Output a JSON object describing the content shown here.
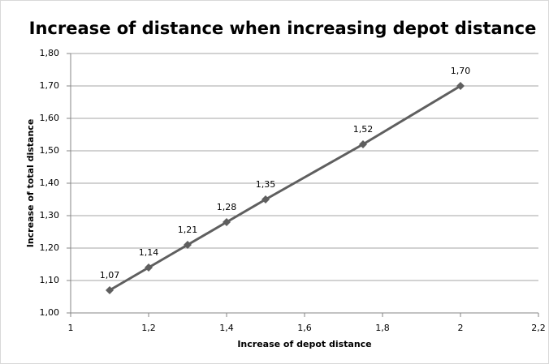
{
  "chart_data": {
    "type": "line",
    "title": "Increase of distance when increasing depot distance",
    "x_label": "Increase of depot distance",
    "y_label": "Increase of total distance",
    "x": [
      1.1,
      1.2,
      1.3,
      1.4,
      1.5,
      1.75,
      2
    ],
    "series": [
      {
        "color": "#5f5f5f",
        "values": [
          1.07,
          1.14,
          1.21,
          1.28,
          1.35,
          1.52,
          1.7
        ],
        "value_labels": [
          "1,07",
          "1,14",
          "1,21",
          "1,28",
          "1,35",
          "1,52",
          "1,70"
        ]
      }
    ],
    "xlim": [
      1,
      2.2
    ],
    "xticks": [
      1,
      {
        "value": 1.2,
        "label": "1,2"
      },
      {
        "value": 1.4,
        "label": "1,4"
      },
      {
        "value": 1.6,
        "label": "1,6"
      },
      {
        "value": 1.8,
        "label": "1,8"
      },
      2,
      {
        "value": 2.2,
        "label": "2,2"
      }
    ],
    "ylim": [
      1.0,
      1.8
    ],
    "yticks": [
      {
        "value": 1.0,
        "label": "1,00"
      },
      {
        "value": 1.1,
        "label": "1,10"
      },
      {
        "value": 1.2,
        "label": "1,20"
      },
      {
        "value": 1.3,
        "label": "1,30"
      },
      {
        "value": 1.4,
        "label": "1,40"
      },
      {
        "value": 1.5,
        "label": "1,50"
      },
      {
        "value": 1.6,
        "label": "1,60"
      },
      {
        "value": 1.7,
        "label": "1,70"
      },
      {
        "value": 1.8,
        "label": "1,80"
      }
    ],
    "grid": true
  }
}
